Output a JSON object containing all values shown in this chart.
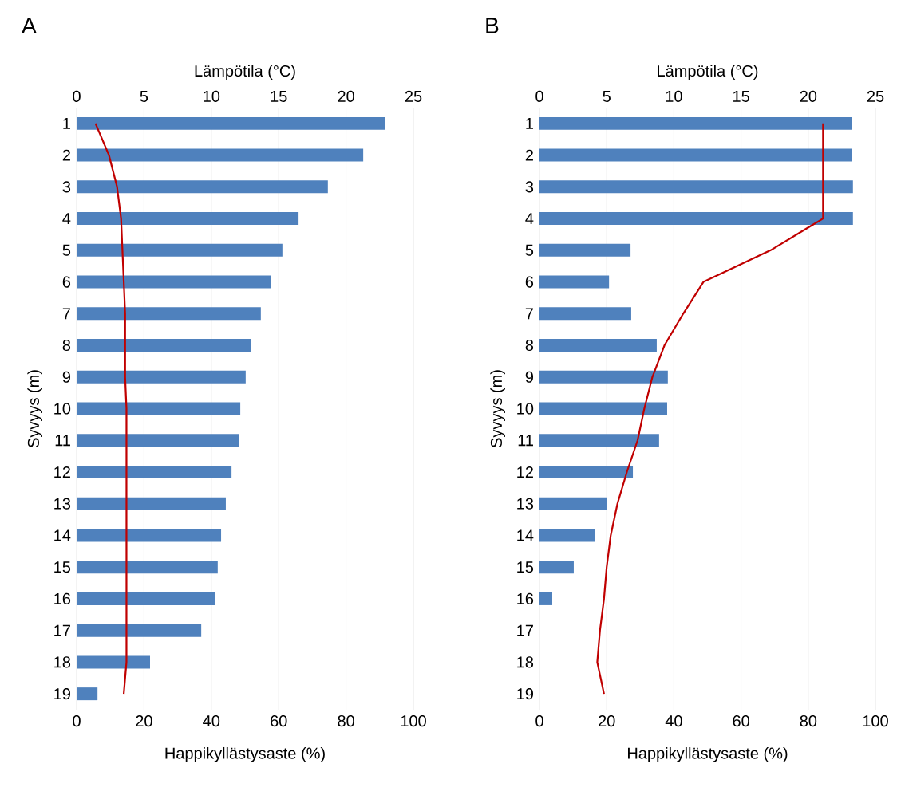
{
  "chart_data": [
    {
      "type": "bar",
      "orientation": "horizontal",
      "title": "A",
      "xlabel": "Happikyllästysaste (%)",
      "x2label": "Lämpötila (°C)",
      "ylabel": "Syvyys (m)",
      "categories": [
        "1",
        "2",
        "3",
        "4",
        "5",
        "6",
        "7",
        "8",
        "9",
        "10",
        "11",
        "12",
        "13",
        "14",
        "15",
        "16",
        "17",
        "18",
        "19"
      ],
      "series": [
        {
          "color": "#4f81bd",
          "values": [
            91.7,
            85.1,
            74.6,
            65.9,
            61.1,
            57.8,
            54.7,
            51.7,
            50.2,
            48.6,
            48.3,
            46.0,
            44.3,
            42.9,
            41.9,
            41.0,
            37.0,
            21.8,
            6.2
          ]
        },
        {
          "type": "line",
          "axis": "x2",
          "color": "#c00000",
          "values": [
            1.4,
            2.4,
            3.0,
            3.3,
            3.4,
            3.5,
            3.6,
            3.6,
            3.6,
            3.7,
            3.7,
            3.7,
            3.7,
            3.7,
            3.7,
            3.7,
            3.7,
            3.7,
            3.5
          ]
        }
      ],
      "xlim": [
        0,
        100
      ],
      "xticks": [
        0,
        20,
        40,
        60,
        80,
        100
      ],
      "x2lim": [
        0,
        25
      ],
      "x2ticks": [
        0,
        5,
        10,
        15,
        20,
        25
      ],
      "grid": "x"
    },
    {
      "type": "bar",
      "orientation": "horizontal",
      "title": "B",
      "xlabel": "Happikyllästysaste (%)",
      "x2label": "Lämpötila (°C)",
      "ylabel": "Syvyys (m)",
      "categories": [
        "1",
        "2",
        "3",
        "4",
        "5",
        "6",
        "7",
        "8",
        "9",
        "10",
        "11",
        "12",
        "13",
        "14",
        "15",
        "16",
        "17",
        "18",
        "19"
      ],
      "series": [
        {
          "color": "#4f81bd",
          "values": [
            92.9,
            93.1,
            93.3,
            93.3,
            27.1,
            20.7,
            27.3,
            34.9,
            38.2,
            38.0,
            35.6,
            27.8,
            20.0,
            16.4,
            10.2,
            3.8,
            null,
            null,
            null
          ]
        },
        {
          "type": "line",
          "axis": "x2",
          "color": "#c00000",
          "values": [
            21.1,
            21.1,
            21.1,
            21.1,
            17.2,
            12.2,
            10.7,
            9.3,
            8.4,
            7.8,
            7.3,
            6.5,
            5.8,
            5.3,
            5.0,
            4.8,
            4.5,
            4.3,
            4.8
          ]
        }
      ],
      "xlim": [
        0,
        100
      ],
      "xticks": [
        0,
        20,
        40,
        60,
        80,
        100
      ],
      "x2lim": [
        0,
        25
      ],
      "x2ticks": [
        0,
        5,
        10,
        15,
        20,
        25
      ],
      "grid": "x"
    }
  ]
}
